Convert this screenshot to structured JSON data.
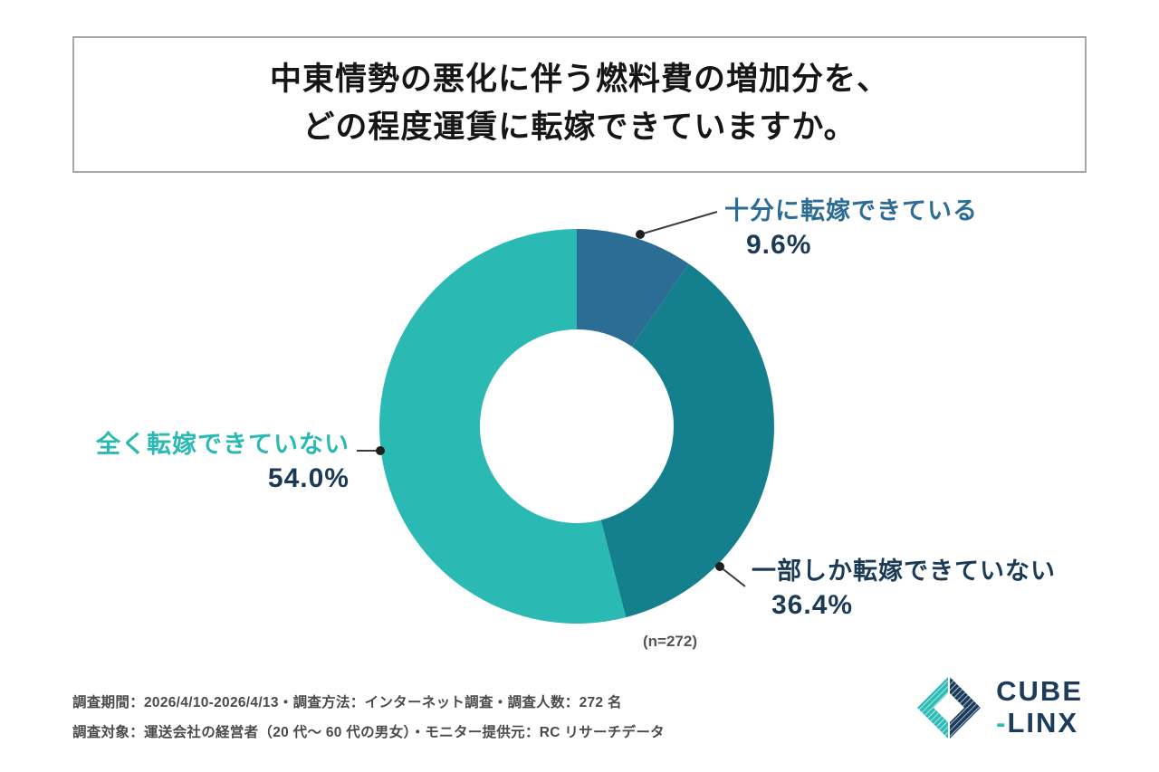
{
  "title": {
    "line1": "中東情勢の悪化に伴う燃料費の増加分を、",
    "line2": "どの程度運賃に転嫁できていますか。"
  },
  "chart_data": {
    "type": "pie",
    "subtype": "donut",
    "title": "中東情勢の悪化に伴う燃料費の増加分を、どの程度運賃に転嫁できていますか。",
    "n_label": "(n=272)",
    "sample_size": 272,
    "start_angle_deg": 0,
    "direction": "clockwise",
    "inner_radius_ratio": 0.49,
    "legend_position": "callouts",
    "segments": [
      {
        "label": "十分に転嫁できている",
        "value": 9.6,
        "pct_label": "9.6%",
        "color": "#2b6d94",
        "label_color": "#2b6d94",
        "pct_color": "#1b3a56"
      },
      {
        "label": "一部しか転嫁できていない",
        "value": 36.4,
        "pct_label": "36.4%",
        "color": "#15808d",
        "label_color": "#1b3a56",
        "pct_color": "#1b3a56"
      },
      {
        "label": "全く転嫁できていない",
        "value": 54.0,
        "pct_label": "54.0%",
        "color": "#2bb9b3",
        "label_color": "#2bb9b3",
        "pct_color": "#1b3a56"
      }
    ]
  },
  "footer": {
    "line1": "調査期間：2026/4/10-2026/4/13・調査方法：インターネット調査・調査人数：272 名",
    "line2": "調査対象：運送会社の経営者（20 代〜 60 代の男女）・モニター提供元：RC リサーチデータ"
  },
  "logo": {
    "line1": "CUBE",
    "dash": "-",
    "line2": "LINX",
    "navy": "#1c3c5e",
    "teal": "#2ebcb6"
  }
}
